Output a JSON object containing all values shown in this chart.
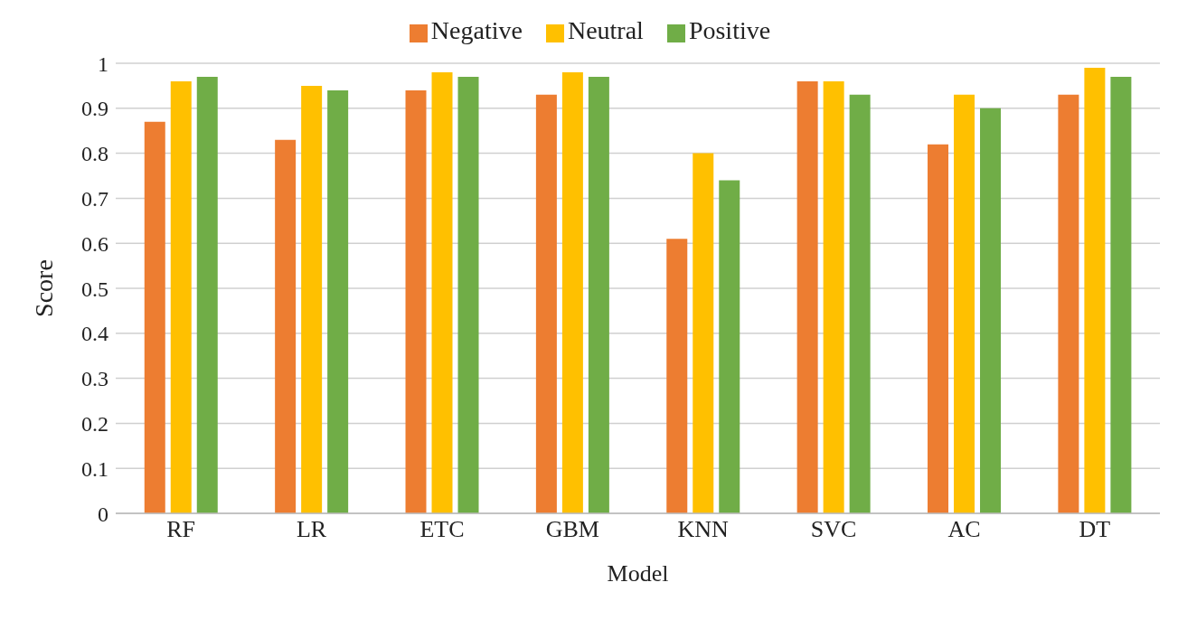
{
  "chart_data": {
    "type": "bar",
    "xlabel": "Model",
    "ylabel": "Score",
    "categories": [
      "RF",
      "LR",
      "ETC",
      "GBM",
      "KNN",
      "SVC",
      "AC",
      "DT"
    ],
    "series": [
      {
        "name": "Negative",
        "color": "#ed7d31",
        "values": [
          0.87,
          0.83,
          0.94,
          0.93,
          0.61,
          0.96,
          0.82,
          0.93
        ]
      },
      {
        "name": "Neutral",
        "color": "#ffc000",
        "values": [
          0.96,
          0.95,
          0.98,
          0.98,
          0.8,
          0.96,
          0.93,
          0.99
        ]
      },
      {
        "name": "Positive",
        "color": "#70ad47",
        "values": [
          0.97,
          0.94,
          0.97,
          0.97,
          0.74,
          0.93,
          0.9,
          0.97
        ]
      }
    ],
    "ylim": [
      0,
      1
    ],
    "yticks": [
      0,
      0.1,
      0.2,
      0.3,
      0.4,
      0.5,
      0.6,
      0.7,
      0.8,
      0.9,
      1
    ],
    "grid": "y",
    "legend": "top"
  }
}
